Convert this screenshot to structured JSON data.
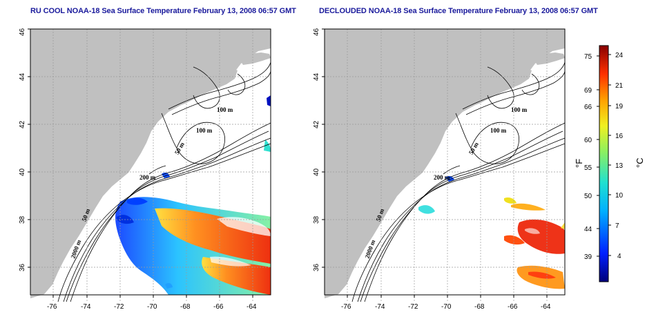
{
  "titles": {
    "left": "RU COOL NOAA-18 Sea Surface Temperature February 13, 2008 06:57 GMT",
    "right": "DECLOUDED NOAA-18 Sea Surface Temperature February 13, 2008 06:57 GMT"
  },
  "axes": {
    "x_ticks": [
      "-76",
      "-74",
      "-72",
      "-70",
      "-68",
      "-66",
      "-64"
    ],
    "y_ticks": [
      "36",
      "38",
      "40",
      "42",
      "44",
      "46"
    ]
  },
  "contour_labels": {
    "c100a": "100 m",
    "c100b": "100 m",
    "c50a": "50 m",
    "c200": "200 m",
    "c50b": "50 m",
    "c2000": "2000 m"
  },
  "colorbar": {
    "fahrenheit_ticks": [
      "75",
      "69",
      "66",
      "60",
      "55",
      "50",
      "44",
      "39"
    ],
    "celsius_ticks": [
      "24",
      "21",
      "19",
      "16",
      "13",
      "10",
      "7",
      "4"
    ],
    "fahrenheit_unit": "°F",
    "celsius_unit": "°C"
  },
  "colors": {
    "land": "#c0c0c0",
    "ocean": "#ffffff",
    "title": "#1a1a9c",
    "grid": "#9a9a9a"
  }
}
